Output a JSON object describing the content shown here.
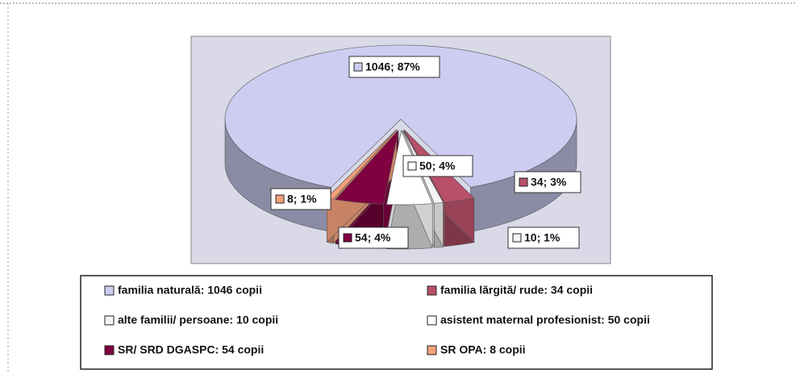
{
  "chart_data": {
    "type": "pie",
    "categories": [
      "familia naturală: 1046 copii",
      "familia lărgită/ rude: 34 copii",
      "alte familii/ persoane: 10 copii",
      "asistent maternal profesionist: 50 copii",
      "SR/ SRD DGASPC: 54 copii",
      "SR OPA: 8 copii"
    ],
    "values": [
      1046,
      34,
      10,
      50,
      54,
      8
    ],
    "value_labels": [
      "1046; 87%",
      "34; 3%",
      "10; 1%",
      "50; 4%",
      "54; 4%",
      "8; 1%"
    ],
    "colors": [
      "#cdcdf2",
      "#b8506a",
      "#f4f4f4",
      "#ffffff",
      "#800040",
      "#f4a07a"
    ]
  }
}
